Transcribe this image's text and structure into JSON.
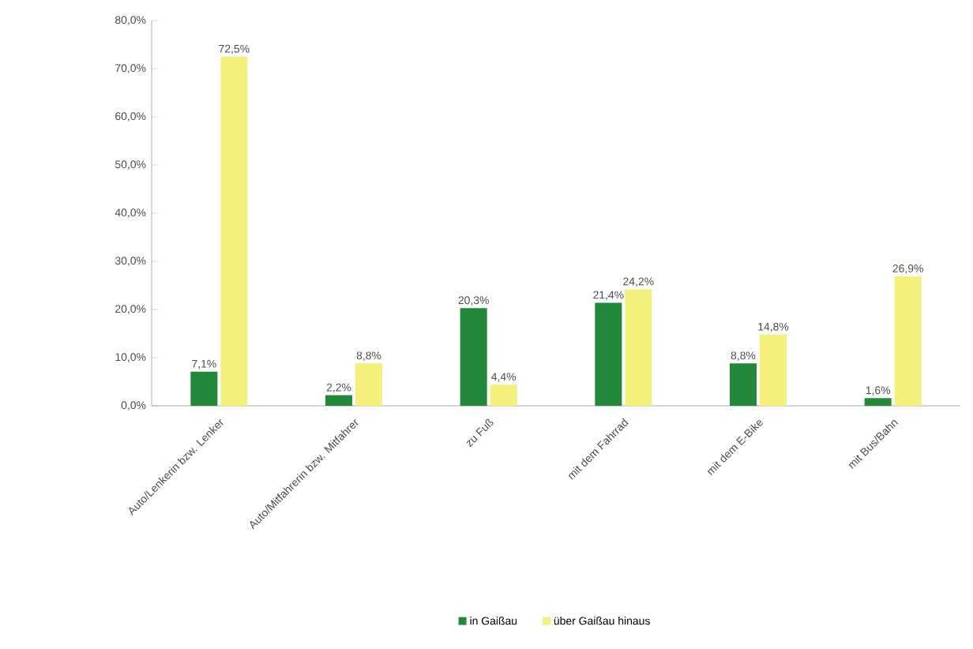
{
  "chart_data": {
    "type": "bar",
    "categories": [
      "Auto/Lenkerin bzw. Lenker",
      "Auto/Mitfahrerin bzw. Mitfahrer",
      "zu Fuß",
      "mit dem Fahrrad",
      "mit dem E-Bike",
      "mit Bus/Bahn"
    ],
    "series": [
      {
        "name": "in Gaißau",
        "color": "#23883a",
        "values": [
          7.1,
          2.2,
          20.3,
          21.4,
          8.8,
          1.6
        ],
        "value_labels": [
          "7,1%",
          "2,2%",
          "20,3%",
          "21,4%",
          "8,8%",
          "1,6%"
        ]
      },
      {
        "name": "über Gaißau hinaus",
        "color": "#f4f07c",
        "values": [
          72.5,
          8.8,
          4.4,
          24.2,
          14.8,
          26.9
        ],
        "value_labels": [
          "72,5%",
          "8,8%",
          "4,4%",
          "24,2%",
          "14,8%",
          "26,9%"
        ]
      }
    ],
    "ylim": [
      0,
      80
    ],
    "yticks": [
      {
        "value": 0,
        "label": "0,0%"
      },
      {
        "value": 10,
        "label": "10,0%"
      },
      {
        "value": 20,
        "label": "20,0%"
      },
      {
        "value": 30,
        "label": "30,0%"
      },
      {
        "value": 40,
        "label": "40,0%"
      },
      {
        "value": 50,
        "label": "50,0%"
      },
      {
        "value": 60,
        "label": "60,0%"
      },
      {
        "value": 70,
        "label": "70,0%"
      },
      {
        "value": 80,
        "label": "80,0%"
      }
    ],
    "legend": "bottom",
    "grid": false
  }
}
